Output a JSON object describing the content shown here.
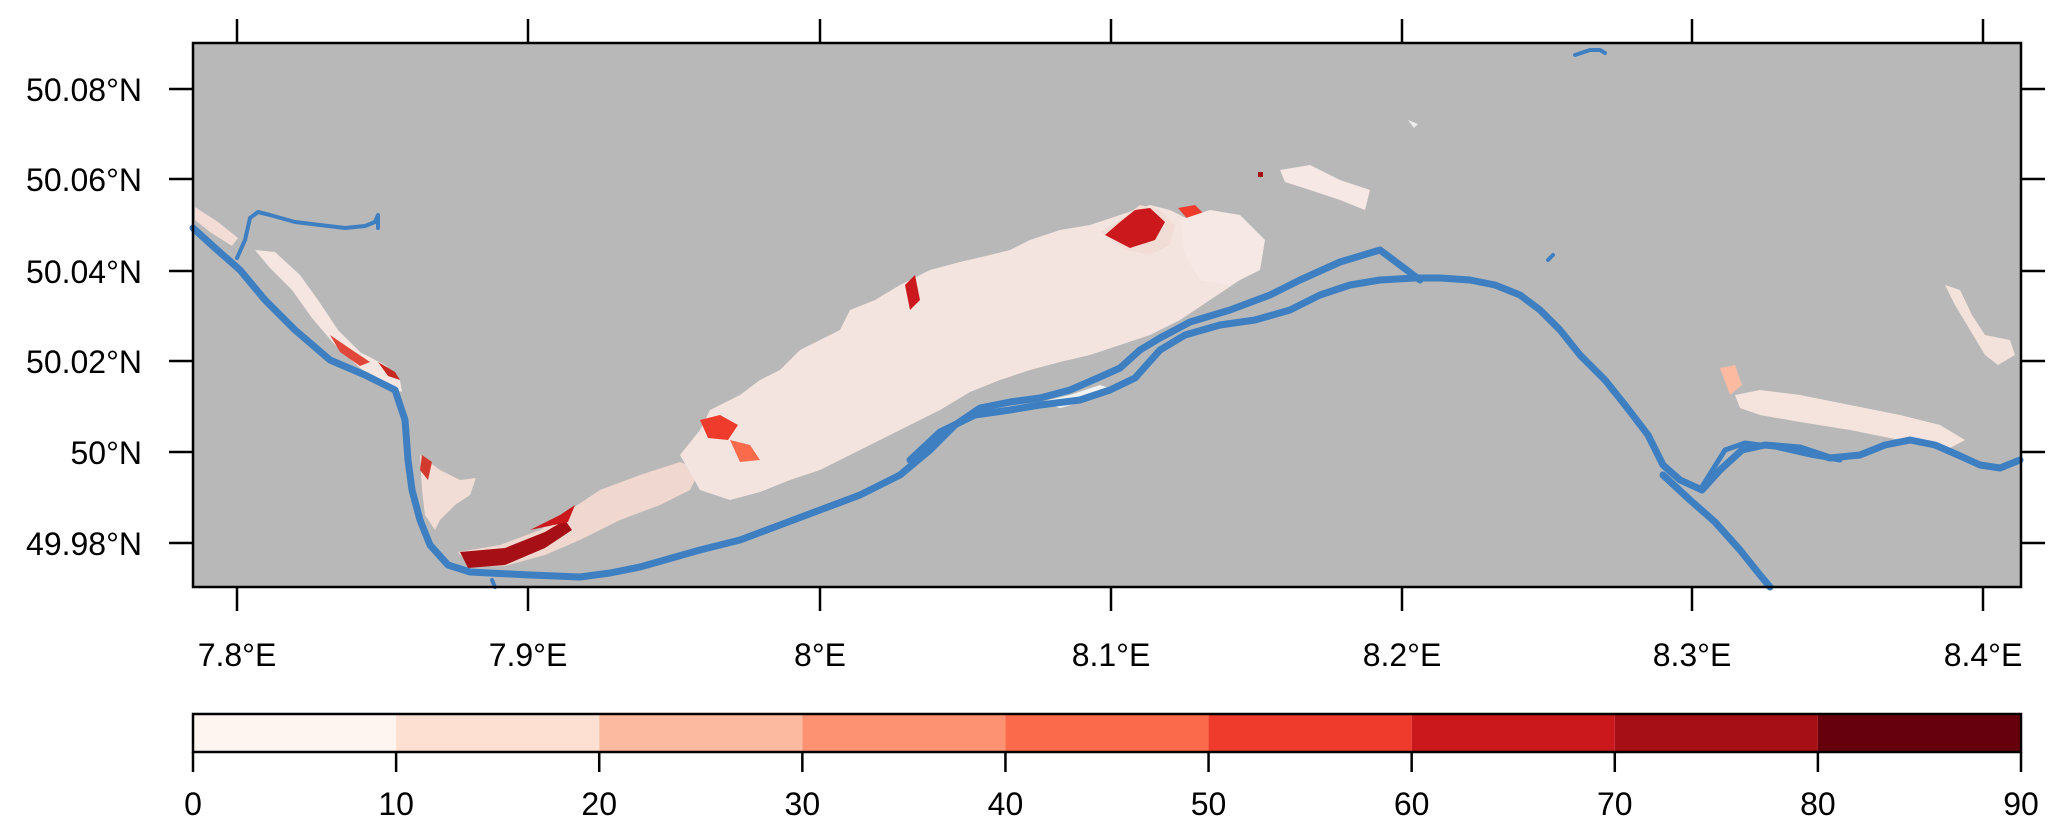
{
  "map": {
    "lat_labels": [
      "50.08°N",
      "50.06°N",
      "50.04°N",
      "50.02°N",
      "50°N",
      "49.98°N"
    ],
    "lon_labels": [
      "7.8°E",
      "7.9°E",
      "8°E",
      "8.1°E",
      "8.2°E",
      "8.3°E",
      "8.4°E"
    ],
    "colors": {
      "background": "#b8b8b8",
      "river": "#3d7fc1",
      "frame": "#000000"
    }
  },
  "colorbar": {
    "tick_labels": [
      "0",
      "10",
      "20",
      "30",
      "40",
      "50",
      "60",
      "70",
      "80",
      "90"
    ],
    "bins": [
      {
        "from": 0,
        "to": 10,
        "color": "#fff5f0"
      },
      {
        "from": 10,
        "to": 20,
        "color": "#fee0d2"
      },
      {
        "from": 20,
        "to": 30,
        "color": "#fcbba1"
      },
      {
        "from": 30,
        "to": 40,
        "color": "#fc9272"
      },
      {
        "from": 40,
        "to": 50,
        "color": "#fb6a4a"
      },
      {
        "from": 50,
        "to": 60,
        "color": "#ef3b2c"
      },
      {
        "from": 60,
        "to": 70,
        "color": "#cb181d"
      },
      {
        "from": 70,
        "to": 80,
        "color": "#a50f15"
      },
      {
        "from": 80,
        "to": 90,
        "color": "#67000d"
      }
    ]
  }
}
